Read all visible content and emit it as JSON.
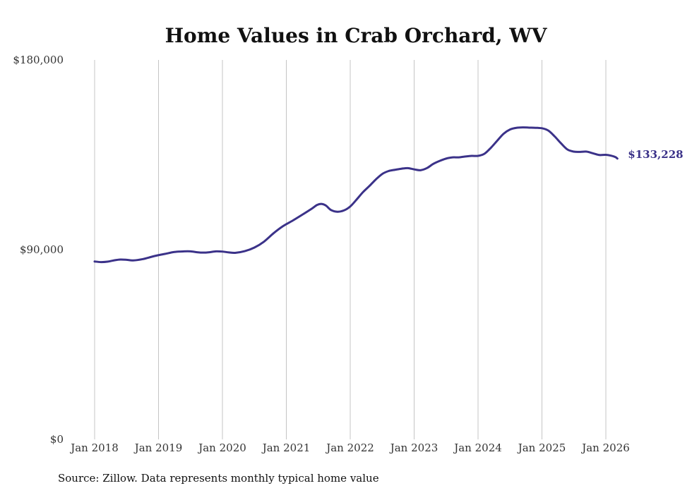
{
  "chart_data": {
    "type": "line",
    "title": "Home Values in Crab Orchard, WV",
    "xlabel": "",
    "ylabel": "",
    "ylim": [
      0,
      180000
    ],
    "grid": "vertical",
    "y_ticks": [
      {
        "value": 0,
        "label": "$0"
      },
      {
        "value": 90000,
        "label": "$90,000"
      },
      {
        "value": 180000,
        "label": "$180,000"
      }
    ],
    "x_ticks": [
      {
        "value": 2018.0,
        "label": "Jan 2018"
      },
      {
        "value": 2019.0,
        "label": "Jan 2019"
      },
      {
        "value": 2020.0,
        "label": "Jan 2020"
      },
      {
        "value": 2021.0,
        "label": "Jan 2021"
      },
      {
        "value": 2022.0,
        "label": "Jan 2022"
      },
      {
        "value": 2023.0,
        "label": "Jan 2023"
      },
      {
        "value": 2024.0,
        "label": "Jan 2024"
      },
      {
        "value": 2025.0,
        "label": "Jan 2025"
      },
      {
        "value": 2026.0,
        "label": "Jan 2026"
      }
    ],
    "xlim": [
      2018.0,
      2026.2
    ],
    "series": [
      {
        "name": "Typical home value",
        "color": "#3b3289",
        "end_label": "$133,228",
        "points": [
          [
            2018.0,
            84400
          ],
          [
            2018.1,
            84100
          ],
          [
            2018.2,
            84300
          ],
          [
            2018.3,
            84900
          ],
          [
            2018.4,
            85300
          ],
          [
            2018.5,
            85200
          ],
          [
            2018.6,
            84900
          ],
          [
            2018.75,
            85500
          ],
          [
            2018.9,
            86700
          ],
          [
            2019.0,
            87400
          ],
          [
            2019.1,
            88000
          ],
          [
            2019.25,
            88900
          ],
          [
            2019.4,
            89200
          ],
          [
            2019.5,
            89200
          ],
          [
            2019.6,
            88800
          ],
          [
            2019.7,
            88600
          ],
          [
            2019.8,
            88800
          ],
          [
            2019.9,
            89200
          ],
          [
            2020.0,
            89100
          ],
          [
            2020.1,
            88700
          ],
          [
            2020.2,
            88500
          ],
          [
            2020.35,
            89300
          ],
          [
            2020.5,
            91000
          ],
          [
            2020.65,
            93800
          ],
          [
            2020.8,
            97800
          ],
          [
            2020.95,
            101200
          ],
          [
            2021.1,
            103800
          ],
          [
            2021.25,
            106600
          ],
          [
            2021.4,
            109500
          ],
          [
            2021.48,
            111200
          ],
          [
            2021.55,
            111700
          ],
          [
            2021.62,
            110900
          ],
          [
            2021.7,
            108800
          ],
          [
            2021.8,
            108000
          ],
          [
            2021.9,
            108600
          ],
          [
            2022.0,
            110500
          ],
          [
            2022.1,
            113800
          ],
          [
            2022.2,
            117300
          ],
          [
            2022.3,
            120200
          ],
          [
            2022.4,
            123300
          ],
          [
            2022.5,
            125900
          ],
          [
            2022.6,
            127300
          ],
          [
            2022.7,
            127900
          ],
          [
            2022.8,
            128400
          ],
          [
            2022.9,
            128700
          ],
          [
            2023.0,
            128100
          ],
          [
            2023.1,
            127700
          ],
          [
            2023.2,
            128700
          ],
          [
            2023.3,
            130700
          ],
          [
            2023.4,
            132100
          ],
          [
            2023.5,
            133200
          ],
          [
            2023.6,
            133800
          ],
          [
            2023.7,
            133800
          ],
          [
            2023.8,
            134200
          ],
          [
            2023.9,
            134500
          ],
          [
            2024.0,
            134500
          ],
          [
            2024.1,
            135500
          ],
          [
            2024.2,
            138300
          ],
          [
            2024.3,
            141700
          ],
          [
            2024.4,
            145000
          ],
          [
            2024.5,
            147000
          ],
          [
            2024.6,
            147800
          ],
          [
            2024.7,
            148000
          ],
          [
            2024.8,
            147900
          ],
          [
            2024.9,
            147800
          ],
          [
            2025.0,
            147600
          ],
          [
            2025.1,
            146500
          ],
          [
            2025.2,
            143700
          ],
          [
            2025.3,
            140400
          ],
          [
            2025.4,
            137500
          ],
          [
            2025.5,
            136500
          ],
          [
            2025.6,
            136400
          ],
          [
            2025.7,
            136500
          ],
          [
            2025.8,
            135700
          ],
          [
            2025.9,
            134900
          ],
          [
            2026.0,
            135000
          ],
          [
            2026.08,
            134600
          ],
          [
            2026.15,
            133900
          ],
          [
            2026.18,
            133228
          ]
        ]
      }
    ],
    "source": "Source: Zillow. Data represents monthly typical home value"
  }
}
